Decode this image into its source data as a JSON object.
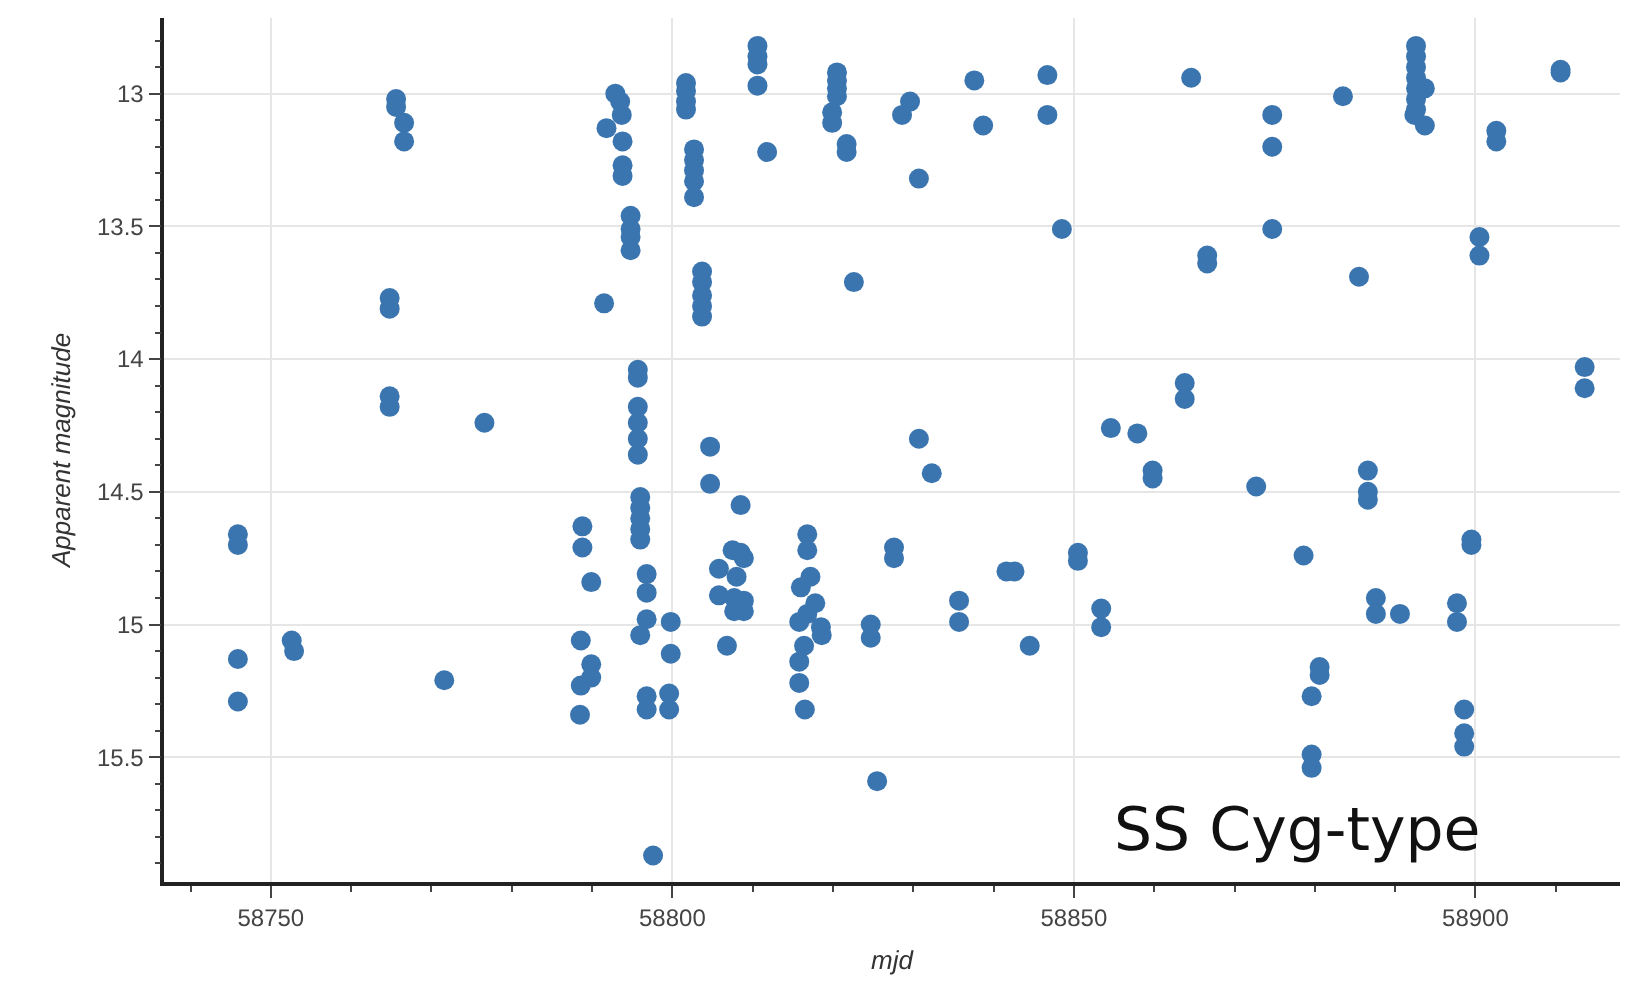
{
  "chart_data": {
    "type": "scatter",
    "xlabel": "mjd",
    "ylabel": "Apparent magnitude",
    "annotations": [
      "SS Cyg-type"
    ],
    "xlim": [
      58736.7,
      58918
    ],
    "xticks": [
      {
        "value": 58740,
        "label": null
      },
      58750,
      {
        "value": 58760,
        "label": null
      },
      {
        "value": 58770,
        "label": null
      },
      {
        "value": 58780,
        "label": null
      },
      {
        "value": 58790,
        "label": null
      },
      58800,
      {
        "value": 58810,
        "label": null
      },
      {
        "value": 58820,
        "label": null
      },
      {
        "value": 58830,
        "label": null
      },
      {
        "value": 58840,
        "label": null
      },
      58850,
      {
        "value": 58860,
        "label": null
      },
      {
        "value": 58870,
        "label": null
      },
      {
        "value": 58880,
        "label": null
      },
      {
        "value": 58890,
        "label": null
      },
      58900,
      {
        "value": 58910,
        "label": null
      }
    ],
    "ylim": [
      15.97,
      12.715
    ],
    "yticks": [
      {
        "value": 12.8,
        "label": null
      },
      {
        "value": 12.9,
        "label": null
      },
      13,
      {
        "value": 13.1,
        "label": null
      },
      {
        "value": 13.2,
        "label": null
      },
      {
        "value": 13.3,
        "label": null
      },
      {
        "value": 13.4,
        "label": null
      },
      13.5,
      {
        "value": 13.6,
        "label": null
      },
      {
        "value": 13.7,
        "label": null
      },
      {
        "value": 13.8,
        "label": null
      },
      {
        "value": 13.9,
        "label": null
      },
      14,
      {
        "value": 14.1,
        "label": null
      },
      {
        "value": 14.2,
        "label": null
      },
      {
        "value": 14.3,
        "label": null
      },
      {
        "value": 14.4,
        "label": null
      },
      14.5,
      {
        "value": 14.6,
        "label": null
      },
      {
        "value": 14.7,
        "label": null
      },
      {
        "value": 14.8,
        "label": null
      },
      {
        "value": 14.9,
        "label": null
      },
      15,
      {
        "value": 15.1,
        "label": null
      },
      {
        "value": 15.2,
        "label": null
      },
      {
        "value": 15.3,
        "label": null
      },
      {
        "value": 15.4,
        "label": null
      },
      15.5,
      {
        "value": 15.6,
        "label": null
      },
      {
        "value": 15.7,
        "label": null
      },
      {
        "value": 15.8,
        "label": null
      },
      {
        "value": 15.9,
        "label": null
      }
    ],
    "grid": true,
    "marker": "circle",
    "series": [
      {
        "color": "#3b75af",
        "x": [
          58745.9,
          58745.9,
          58745.9,
          58745.9,
          58752.6,
          58752.9,
          58764.8,
          58764.8,
          58764.8,
          58764.8,
          58765.6,
          58765.6,
          58766.6,
          58766.6,
          58771.6,
          58776.6,
          58788.8,
          58788.8,
          58789.9,
          58788.6,
          58789.9,
          58789.9,
          58788.6,
          58788.5,
          58791.5,
          58791.8,
          58792.9,
          58793.5,
          58793.7,
          58793.8,
          58793.8,
          58793.8,
          58794.8,
          58794.8,
          58794.8,
          58794.8,
          58795.7,
          58795.7,
          58795.7,
          58795.7,
          58795.7,
          58795.7,
          58796,
          58796,
          58796,
          58796,
          58796,
          58796.8,
          58796.8,
          58796.8,
          58796,
          58796.8,
          58796.8,
          58797.6,
          58799.8,
          58799.8,
          58799.6,
          58799.6,
          58801.7,
          58801.7,
          58801.7,
          58801.7,
          58802.7,
          58802.7,
          58802.7,
          58802.7,
          58802.7,
          58803.7,
          58803.7,
          58803.7,
          58803.7,
          58803.7,
          58804.7,
          58804.7,
          58805.8,
          58805.8,
          58806.8,
          58807.5,
          58808.5,
          58808.9,
          58808,
          58807.7,
          58808.9,
          58807.7,
          58808.9,
          58808.5,
          58810.6,
          58810.6,
          58810.6,
          58810.6,
          58811.8,
          58815.8,
          58815.8,
          58815.8,
          58816,
          58816.4,
          58816.5,
          58816.8,
          58816.8,
          58816.8,
          58817.2,
          58817.8,
          58818.5,
          58818.6,
          58819.9,
          58819.9,
          58820.5,
          58820.5,
          58820.5,
          58820.5,
          58821.7,
          58821.7,
          58822.6,
          58824.7,
          58824.7,
          58825.5,
          58827.6,
          58827.6,
          58828.6,
          58829.6,
          58830.7,
          58830.7,
          58832.3,
          58835.7,
          58835.7,
          58837.6,
          58838.7,
          58841.6,
          58842.6,
          58844.5,
          58846.7,
          58846.7,
          58848.5,
          58850.5,
          58850.5,
          58853.4,
          58853.4,
          58854.6,
          58857.9,
          58859.8,
          58859.8,
          58863.8,
          58863.8,
          58864.6,
          58866.6,
          58866.6,
          58872.7,
          58874.7,
          58874.7,
          58874.7,
          58878.6,
          58879.6,
          58879.6,
          58879.6,
          58880.6,
          58880.6,
          58883.5,
          58885.5,
          58886.6,
          58886.6,
          58886.6,
          58887.6,
          58887.6,
          58890.6,
          58892.6,
          58892.6,
          58892.6,
          58892.6,
          58892.6,
          58892.6,
          58892.6,
          58893.7,
          58893.7,
          58892.4,
          58897.7,
          58897.7,
          58898.6,
          58898.6,
          58898.6,
          58899.5,
          58899.5,
          58900.5,
          58900.5,
          58902.6,
          58902.6,
          58910.6,
          58910.6,
          58913.6,
          58913.6
        ],
        "values": [
          14.66,
          14.7,
          15.13,
          15.29,
          15.06,
          15.1,
          13.77,
          13.81,
          14.14,
          14.18,
          13.02,
          13.05,
          13.11,
          13.18,
          15.21,
          14.24,
          14.63,
          14.71,
          14.84,
          15.06,
          15.15,
          15.2,
          15.23,
          15.34,
          13.79,
          13.13,
          13.0,
          13.03,
          13.08,
          13.18,
          13.27,
          13.31,
          13.46,
          13.51,
          13.54,
          13.59,
          14.04,
          14.07,
          14.18,
          14.24,
          14.3,
          14.36,
          14.52,
          14.56,
          14.6,
          14.64,
          14.68,
          14.81,
          14.88,
          14.98,
          15.04,
          15.27,
          15.32,
          15.87,
          14.99,
          15.11,
          15.26,
          15.32,
          12.96,
          12.99,
          13.03,
          13.06,
          13.21,
          13.25,
          13.29,
          13.33,
          13.39,
          13.67,
          13.71,
          13.76,
          13.8,
          13.84,
          14.33,
          14.47,
          14.79,
          14.89,
          15.08,
          14.72,
          14.73,
          14.75,
          14.82,
          14.9,
          14.91,
          14.95,
          14.95,
          14.55,
          12.82,
          12.86,
          12.89,
          12.97,
          13.22,
          14.99,
          15.14,
          15.22,
          14.86,
          15.08,
          15.32,
          14.66,
          14.72,
          14.96,
          14.82,
          14.92,
          15.01,
          15.04,
          13.07,
          13.11,
          12.92,
          12.95,
          12.98,
          13.01,
          13.19,
          13.22,
          13.71,
          15.0,
          15.05,
          15.59,
          14.71,
          14.75,
          13.08,
          13.03,
          13.32,
          14.3,
          14.43,
          14.91,
          14.99,
          12.95,
          13.12,
          14.8,
          14.8,
          15.08,
          12.93,
          13.08,
          13.51,
          14.73,
          14.76,
          14.94,
          15.01,
          14.26,
          14.28,
          14.42,
          14.45,
          14.09,
          14.15,
          12.94,
          13.61,
          13.64,
          14.48,
          13.08,
          13.2,
          13.51,
          14.74,
          15.27,
          15.49,
          15.54,
          15.16,
          15.19,
          13.01,
          13.69,
          14.42,
          14.5,
          14.53,
          14.9,
          14.96,
          14.96,
          12.82,
          12.86,
          12.9,
          12.94,
          12.98,
          13.02,
          13.06,
          12.98,
          13.12,
          13.08,
          14.92,
          14.99,
          15.32,
          15.41,
          15.46,
          14.68,
          14.7,
          13.54,
          13.61,
          13.14,
          13.18,
          12.91,
          12.92,
          14.03,
          14.11
        ]
      }
    ]
  }
}
